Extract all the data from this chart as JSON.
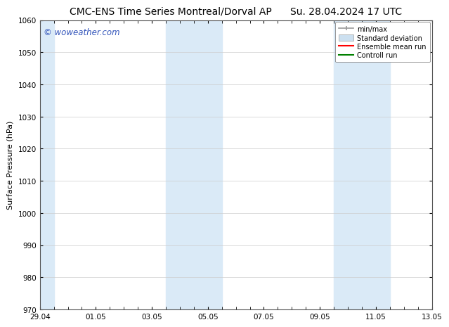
{
  "title": "CMC-ENS Time Series Montreal/Dorval AP      Su. 28.04.2024 17 UTC",
  "ylabel": "Surface Pressure (hPa)",
  "ylim": [
    970,
    1060
  ],
  "yticks": [
    970,
    980,
    990,
    1000,
    1010,
    1020,
    1030,
    1040,
    1050,
    1060
  ],
  "xlim_start": 0,
  "xlim_end": 14,
  "xtick_labels": [
    "29.04",
    "01.05",
    "03.05",
    "05.05",
    "07.05",
    "09.05",
    "11.05",
    "13.05"
  ],
  "xtick_positions": [
    0,
    2,
    4,
    6,
    8,
    10,
    12,
    14
  ],
  "shaded_bands": [
    {
      "x_start": 0.0,
      "x_end": 0.5
    },
    {
      "x_start": 4.5,
      "x_end": 6.5
    },
    {
      "x_start": 10.5,
      "x_end": 12.5
    }
  ],
  "shaded_color": "#daeaf7",
  "watermark_text": "© woweather.com",
  "watermark_color": "#3355bb",
  "legend_labels": [
    "min/max",
    "Standard deviation",
    "Ensemble mean run",
    "Controll run"
  ],
  "bg_color": "#ffffff",
  "plot_bg_color": "#ffffff",
  "grid_color": "#cccccc",
  "title_fontsize": 10,
  "axis_fontsize": 8,
  "tick_fontsize": 7.5
}
